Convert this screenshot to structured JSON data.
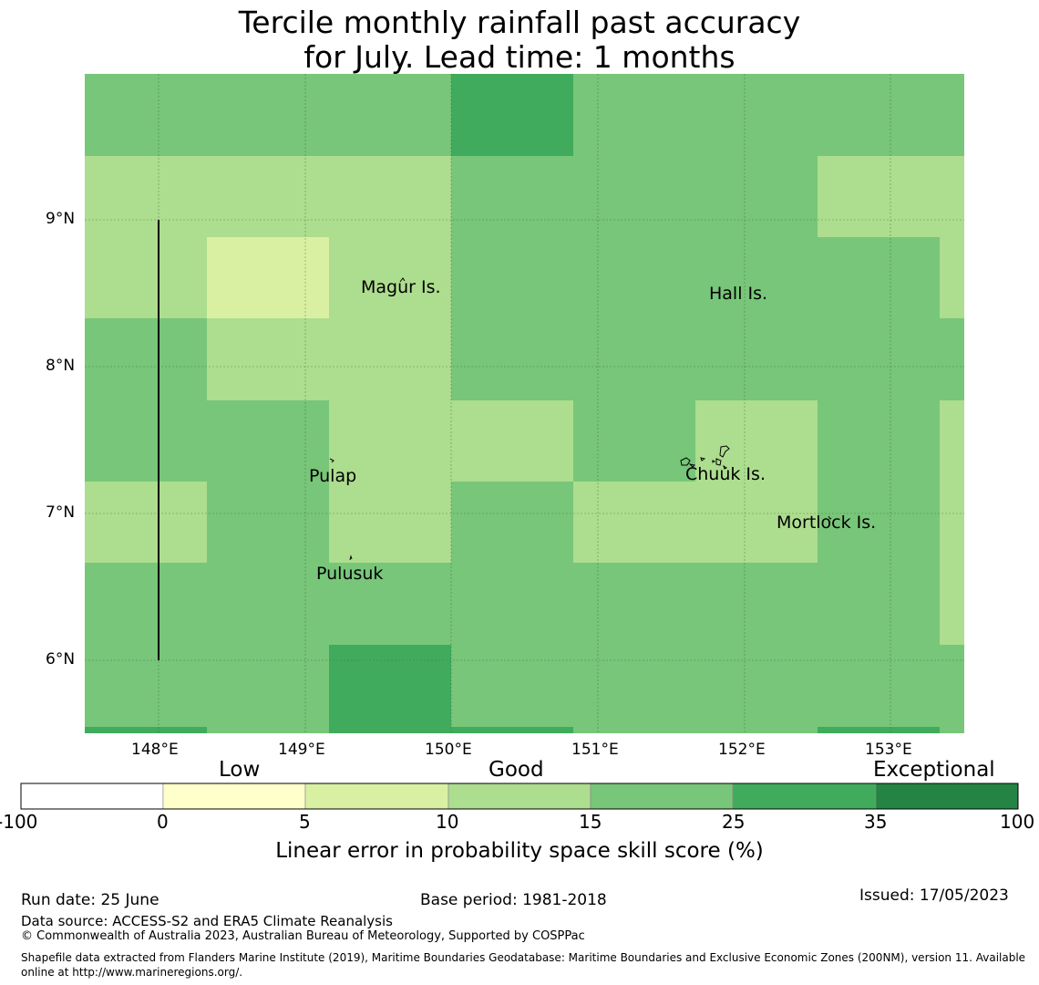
{
  "title": {
    "line1": "Tercile monthly rainfall past accuracy",
    "line2": "for July. Lead time: 1 months"
  },
  "map": {
    "lon_ticks": [
      "148°E",
      "149°E",
      "150°E",
      "151°E",
      "152°E",
      "153°E"
    ],
    "lat_ticks": [
      "9°N",
      "8°N",
      "7°N",
      "6°N"
    ],
    "places": [
      {
        "name": "Magur Is."
      },
      {
        "name": "Hall Is."
      },
      {
        "name": "Pulap"
      },
      {
        "name": "Chuuk Is."
      },
      {
        "name": "Mortlock Is."
      },
      {
        "name": "Pulusuk"
      }
    ],
    "colors": {
      "c5_10": "#d9f0a3",
      "c10_15": "#addd8e",
      "c15_25": "#78c679",
      "c25_35": "#41ab5d",
      "c35_100": "#238443"
    }
  },
  "legend": {
    "categories": [
      "Low",
      "Good",
      "Exceptional"
    ],
    "tick_labels": [
      "-100",
      "0",
      "5",
      "10",
      "15",
      "25",
      "35",
      "100"
    ],
    "colors": [
      "#ffffff",
      "#ffffcc",
      "#d9f0a3",
      "#addd8e",
      "#78c679",
      "#41ab5d",
      "#238443"
    ],
    "label": "Linear error in probability space skill score (%)"
  },
  "footer": {
    "run_date": "Run date: 25 June",
    "base_period": "Base period: 1981-2018",
    "issued": "Issued: 17/05/2023",
    "data_source": "Data source: ACCESS-S2 and ERA5 Climate Reanalysis",
    "copyright": "© Commonwealth of Australia 2023, Australian Bureau of Meteorology, Supported by COSPPac",
    "shapefile": "Shapefile data extracted from Flanders Marine Institute (2019), Maritime Boundaries Geodatabase: Maritime Boundaries and Exclusive Economic Zones (200NM), version 11. Available online at http://www.marineregions.org/."
  }
}
